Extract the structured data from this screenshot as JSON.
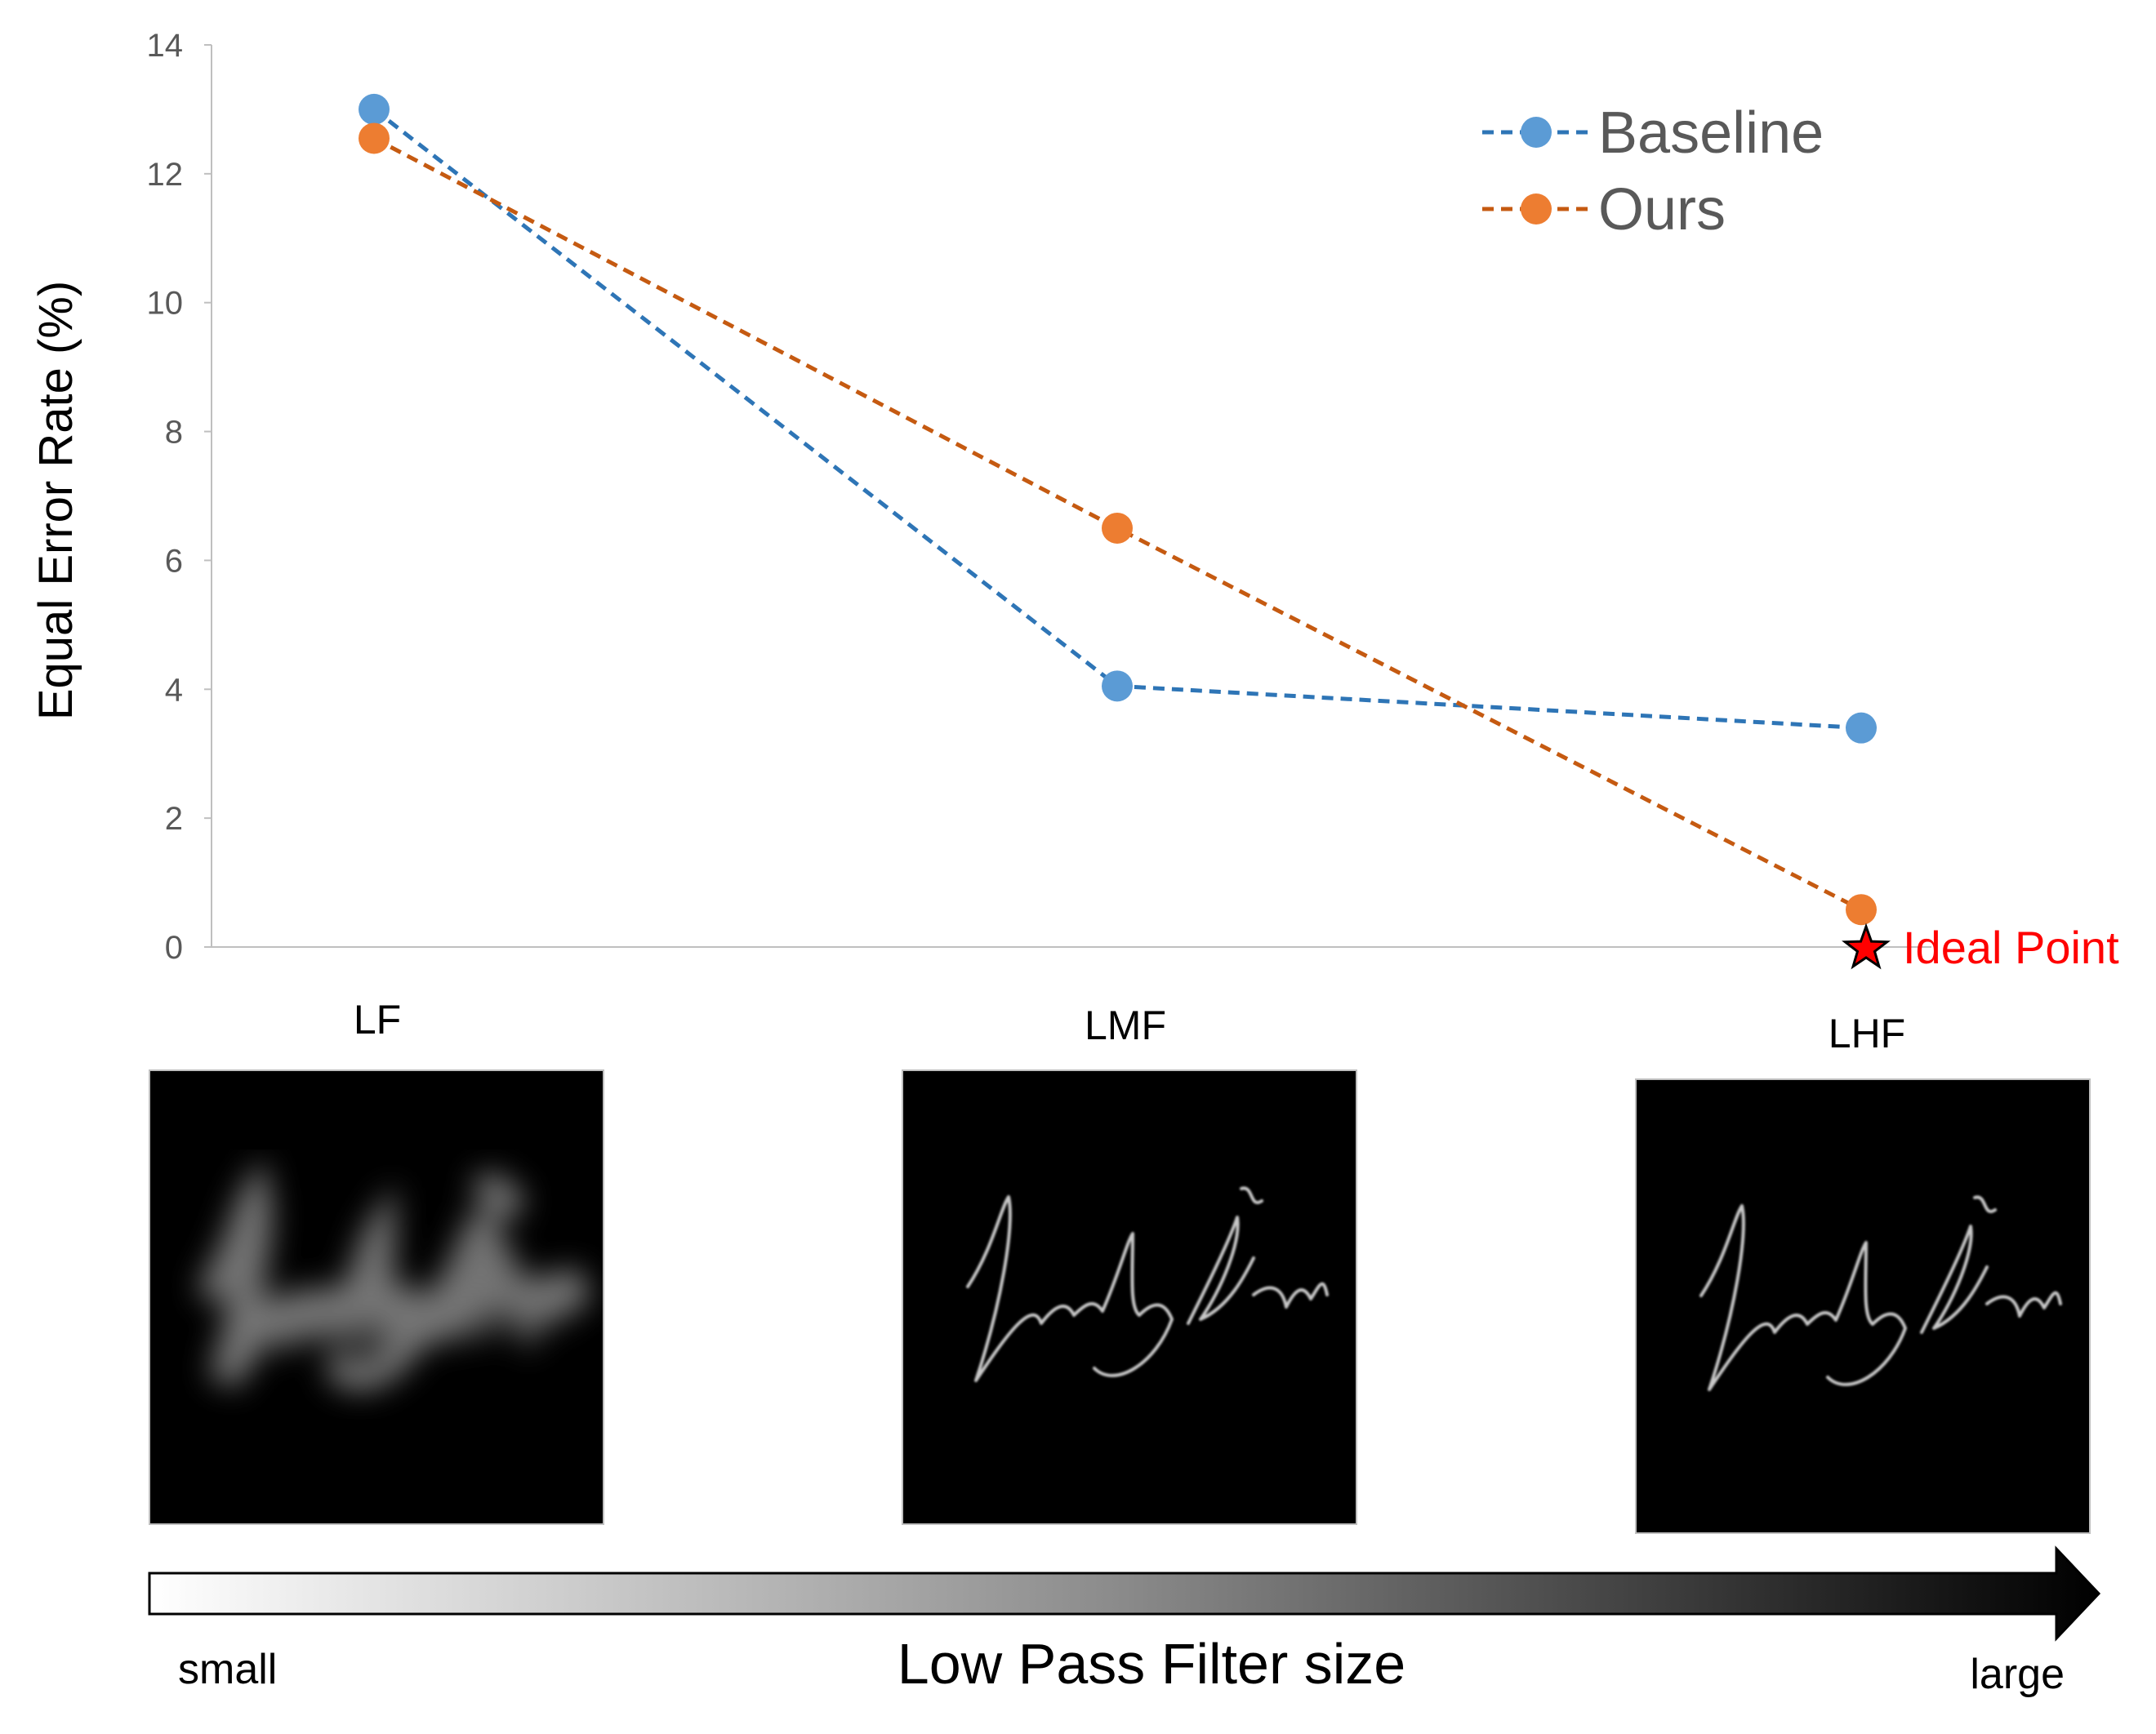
{
  "chart_data": {
    "type": "line",
    "categories": [
      "LF",
      "LMF",
      "LHF"
    ],
    "series": [
      {
        "name": "Baseline",
        "values": [
          13.0,
          4.05,
          3.4
        ],
        "color": "#5b9bd5",
        "line_color": "#2e75b6"
      },
      {
        "name": "Ours",
        "values": [
          12.55,
          6.5,
          0.58
        ],
        "color": "#ed7d31",
        "line_color": "#c55a11"
      }
    ],
    "ideal_point": {
      "label": "Ideal Point",
      "category": "LHF",
      "value": 0,
      "color": "#ff0000"
    },
    "title": "",
    "xlabel": "",
    "ylabel": "Equal Error Rate (%)",
    "ylim": [
      0,
      14
    ],
    "yticks": [
      0,
      2,
      4,
      6,
      8,
      10,
      12,
      14
    ],
    "grid": false,
    "legend_position": "top-right",
    "line_style": "dashed"
  },
  "filter_scale": {
    "label": "Low Pass Filter size",
    "start_label": "small",
    "end_label": "large"
  },
  "sample_images": [
    {
      "category": "LF",
      "style": "blurred-signature"
    },
    {
      "category": "LMF",
      "style": "sharp-signature"
    },
    {
      "category": "LHF",
      "style": "sharp-signature"
    }
  ]
}
